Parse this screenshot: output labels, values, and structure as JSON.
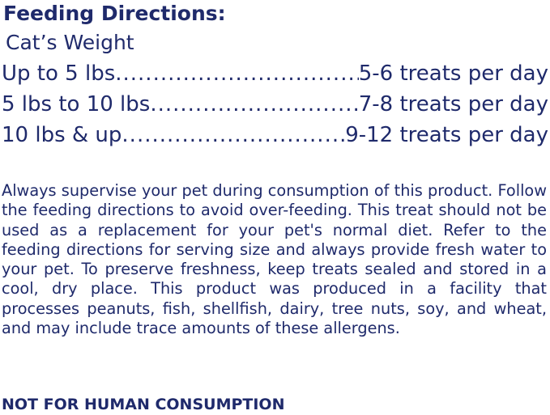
{
  "title": "Feeding Directions:",
  "subtitle": "Cat’s Weight",
  "rows": [
    {
      "weight": "Up to 5 lbs",
      "amount": "5-6 treats per day"
    },
    {
      "weight": "5 lbs to 10 lbs",
      "amount": "7-8 treats per day"
    },
    {
      "weight": "10 lbs & up",
      "amount": "9-12 treats per day"
    }
  ],
  "paragraph": "Always supervise your pet during consumption of this product. Follow the feeding directions to avoid over-feeding. This treat should not be used as a replacement for your pet's normal diet. Refer to the feeding directions for serving size and always provide fresh water to your pet. To preserve freshness, keep treats sealed and stored in a cool, dry place. This product was produced in a facility that processes peanuts, fish, shellfish, dairy, tree nuts, soy, and wheat, and may include trace amounts of these allergens.",
  "warning": "NOT FOR HUMAN CONSUMPTION"
}
